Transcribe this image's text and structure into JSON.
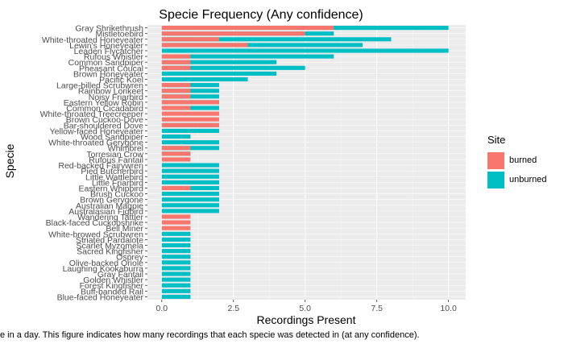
{
  "chart_data": {
    "type": "bar",
    "orientation": "horizontal",
    "title": "Specie Frequency (Any confidence)",
    "xlabel": "Recordings Present",
    "ylabel": "Specie",
    "xlim": [
      -0.5,
      10.6
    ],
    "xticks": [
      0,
      2.5,
      5,
      7.5,
      10
    ],
    "xtick_labels": [
      "0.0",
      "2.5",
      "5.0",
      "7.5",
      "10.0"
    ],
    "grid": true,
    "legend_position": "right",
    "legend_title": "Site",
    "series": [
      {
        "name": "burned",
        "color": "#F8766D"
      },
      {
        "name": "unburned",
        "color": "#00BFC4"
      }
    ],
    "categories": [
      "Gray Shrikethrush",
      "Mistletoebird",
      "White-throated Honeyeater",
      "Lewin's Honeyeater",
      "Leaden Flycatcher",
      "Rufous Whistler",
      "Common Sandpiper",
      "Pheasant Coucal",
      "Brown Honeyeater",
      "Pacific Koel",
      "Large-billed Scrubwren",
      "Rainbow Lorikeet",
      "Noisy Friarbird",
      "Eastern Yellow Robin",
      "Common Cicadabird",
      "White-throated Treecreeper",
      "Brown Cuckoo-Dove",
      "Bar-shouldered Dove",
      "Yellow-faced Honeyeater",
      "Wood Sandpiper",
      "White-throated Gerygone",
      "Whimbrel",
      "Torresian Crow",
      "Rufous Fantail",
      "Red-backed Fairywren",
      "Pied Butcherbird",
      "Little Wattlebird",
      "Little Friarbird",
      "Eastern Whipbird",
      "Brush Cuckoo",
      "Brown Gerygone",
      "Australian Magpie",
      "Australasian Figbird",
      "Wandering Tattler",
      "Black-faced Cuckooshrike",
      "Bell Miner",
      "White-browed Scrubwren",
      "Striated Pardalote",
      "Scarlet Myzomela",
      "Sacred Kingfisher",
      "Osprey",
      "Olive-backed Oriole",
      "Laughing Kookaburra",
      "Gray Fantail",
      "Golden Whistler",
      "Forest Kingfisher",
      "Buff-banded Rail",
      "Blue-faced Honeyeater"
    ],
    "values_burned": [
      6,
      5,
      2,
      3,
      0,
      1,
      1,
      1,
      0,
      0,
      1,
      1,
      1,
      2,
      1,
      2,
      2,
      2,
      0,
      0,
      0,
      1,
      1,
      1,
      0,
      0,
      0,
      0,
      1,
      0,
      0,
      0,
      0,
      1,
      1,
      1,
      0,
      0,
      0,
      0,
      0,
      0,
      0,
      0,
      0,
      0,
      0,
      0
    ],
    "values_unburned": [
      10,
      6,
      8,
      7,
      10,
      6,
      4,
      5,
      4,
      3,
      2,
      2,
      2,
      2,
      2,
      0,
      0,
      2,
      2,
      1,
      2,
      2,
      1,
      0,
      2,
      2,
      2,
      2,
      2,
      2,
      2,
      2,
      2,
      0,
      0,
      0,
      1,
      1,
      1,
      1,
      1,
      1,
      1,
      1,
      1,
      1,
      1,
      1
    ]
  },
  "caption": "e in a day. This figure indicates how many recordings that each specie was detected in (at any confidence)."
}
